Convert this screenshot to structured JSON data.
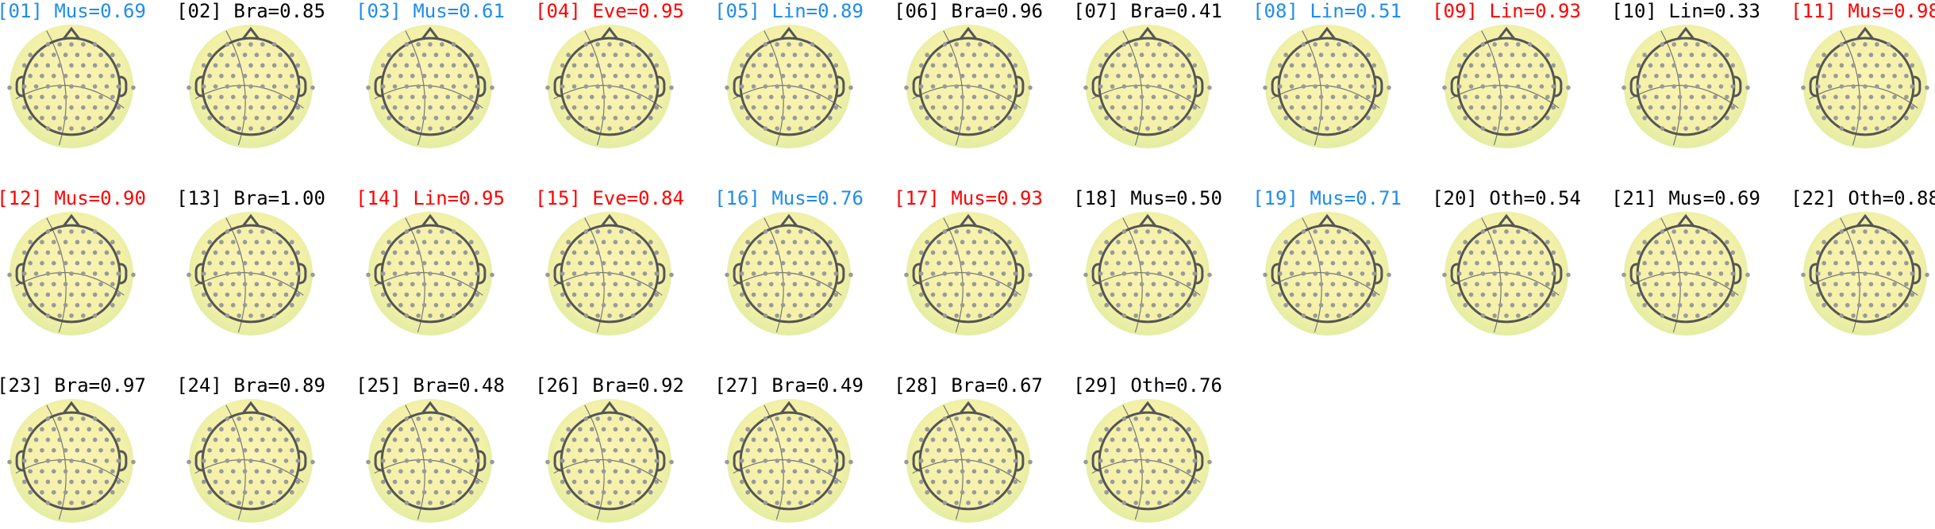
{
  "components": [
    {
      "title": "[01] Mus=0.69",
      "color": "#1f8ceb"
    },
    {
      "title": "[02] Bra=0.85",
      "color": "#000000"
    },
    {
      "title": "[03] Mus=0.61",
      "color": "#1f8ceb"
    },
    {
      "title": "[04] Eve=0.95",
      "color": "#ff0000"
    },
    {
      "title": "[05] Lin=0.89",
      "color": "#1f8ceb"
    },
    {
      "title": "[06] Bra=0.96",
      "color": "#000000"
    },
    {
      "title": "[07] Bra=0.41",
      "color": "#000000"
    },
    {
      "title": "[08] Lin=0.51",
      "color": "#1f8ceb"
    },
    {
      "title": "[09] Lin=0.93",
      "color": "#ff0000"
    },
    {
      "title": "[10] Lin=0.33",
      "color": "#000000"
    },
    {
      "title": "[11] Mus=0.98",
      "color": "#ff0000"
    },
    {
      "title": "[12] Mus=0.90",
      "color": "#ff0000"
    },
    {
      "title": "[13] Bra=1.00",
      "color": "#000000"
    },
    {
      "title": "[14] Lin=0.95",
      "color": "#ff0000"
    },
    {
      "title": "[15] Eve=0.84",
      "color": "#ff0000"
    },
    {
      "title": "[16] Mus=0.76",
      "color": "#1f8ceb"
    },
    {
      "title": "[17] Mus=0.93",
      "color": "#ff0000"
    },
    {
      "title": "[18] Mus=0.50",
      "color": "#000000"
    },
    {
      "title": "[19] Mus=0.71",
      "color": "#1f8ceb"
    },
    {
      "title": "[20] Oth=0.54",
      "color": "#000000"
    },
    {
      "title": "[21] Mus=0.69",
      "color": "#000000"
    },
    {
      "title": "[22] Oth=0.88",
      "color": "#000000"
    },
    {
      "title": "[23] Bra=0.97",
      "color": "#000000"
    },
    {
      "title": "[24] Bra=0.89",
      "color": "#000000"
    },
    {
      "title": "[25] Bra=0.48",
      "color": "#000000"
    },
    {
      "title": "[26] Bra=0.92",
      "color": "#000000"
    },
    {
      "title": "[27] Bra=0.49",
      "color": "#000000"
    },
    {
      "title": "[28] Bra=0.67",
      "color": "#000000"
    },
    {
      "title": "[29] Oth=0.76",
      "color": "#000000"
    }
  ]
}
